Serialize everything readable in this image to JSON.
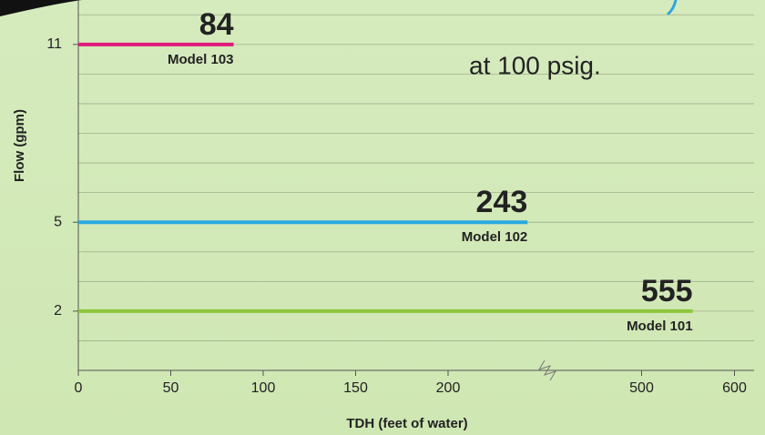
{
  "chart_data": {
    "type": "hline",
    "xlabel": "TDH (feet of water)",
    "ylabel": "Flow (gpm)",
    "annotation": "at 100 psig.",
    "series": [
      {
        "name": "Model 103",
        "color": "#e0197d",
        "flow": 11,
        "tdh": 84
      },
      {
        "name": "Model 102",
        "color": "#29a8e0",
        "flow": 5,
        "tdh": 243
      },
      {
        "name": "Model 101",
        "color": "#8cc63e",
        "flow": 2,
        "tdh": 555
      }
    ],
    "xlim": [
      0,
      600
    ],
    "x_break": [
      250,
      450
    ],
    "xticks": [
      0,
      50,
      100,
      150,
      200,
      500,
      600
    ],
    "ylim": [
      0,
      12.5
    ],
    "yticks": [
      2,
      5,
      11
    ],
    "ygrid": [
      1,
      2,
      3,
      4,
      5,
      6,
      7,
      8,
      9,
      10,
      11,
      12
    ],
    "grid": true
  }
}
